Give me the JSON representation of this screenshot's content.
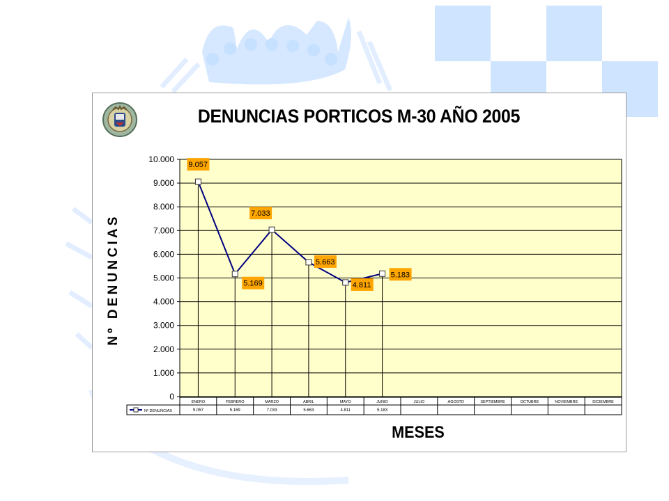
{
  "colors": {
    "plot_background": "#ffffcc",
    "series_line": "#000080",
    "data_label_fill": "#ffa500",
    "decor_blue": "#cfe5ff"
  },
  "icons": {
    "emblem": "police-badge-emblem"
  },
  "chart_data": {
    "type": "line",
    "title": "DENUNCIAS PORTICOS M-30 AÑO 2005",
    "ylabel": "Nº DENUNCIAS",
    "xlabel": "MESES",
    "categories": [
      "ENERO",
      "FEBRERO",
      "MARZO",
      "ABRIL",
      "MAYO",
      "JUNIO",
      "JULIO",
      "AGOSTO",
      "SEPTIEMBRE",
      "OCTUBRE",
      "NOVIEMBRE",
      "DICIEMBRE"
    ],
    "y_ticks": [
      "0",
      "1.000",
      "2.000",
      "3.000",
      "4.000",
      "5.000",
      "6.000",
      "7.000",
      "8.000",
      "9.000",
      "10.000"
    ],
    "ylim": [
      0,
      10000
    ],
    "grid": true,
    "series": [
      {
        "name": "Nº DENUNCIAS",
        "values": [
          9057,
          5169,
          7033,
          5663,
          4811,
          5183,
          null,
          null,
          null,
          null,
          null,
          null
        ],
        "data_labels": [
          "9.057",
          "5.169",
          "7.033",
          "5.663",
          "4.811",
          "5.183"
        ],
        "table_values": [
          "9.057",
          "5.169",
          "7.033",
          "5.663",
          "4.811",
          "5.183",
          "",
          "",
          "",
          "",
          "",
          ""
        ]
      }
    ]
  }
}
